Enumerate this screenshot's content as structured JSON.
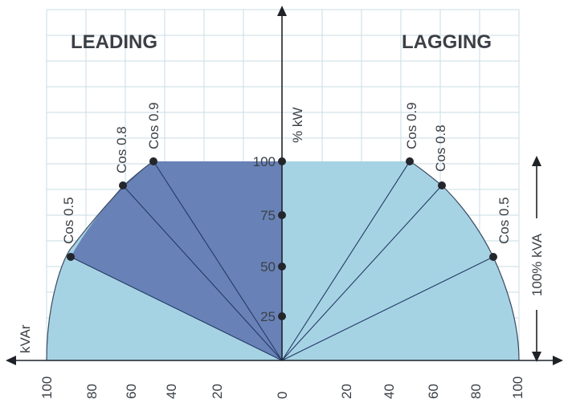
{
  "regions": {
    "leading": "LEADING",
    "lagging": "LAGGING"
  },
  "axes": {
    "y_label": "% kW",
    "x_label": "kVAr",
    "kva_label": "100% kVA",
    "x_ticks": [
      "100",
      "80",
      "60",
      "40",
      "20",
      "0",
      "20",
      "40",
      "60",
      "80",
      "100"
    ],
    "y_ticks": [
      "100",
      "75",
      "50",
      "25"
    ]
  },
  "cos_labels": [
    {
      "side": "leading",
      "text": "Cos 0.5"
    },
    {
      "side": "leading",
      "text": "Cos 0.8"
    },
    {
      "side": "leading",
      "text": "Cos 0.9"
    },
    {
      "side": "lagging",
      "text": "Cos 0.9"
    },
    {
      "side": "lagging",
      "text": "Cos 0.8"
    },
    {
      "side": "lagging",
      "text": "Cos 0.5"
    }
  ],
  "power_factor_points": [
    {
      "side": "leading",
      "pf": 0.5,
      "kvar": 87,
      "kw": 50
    },
    {
      "side": "leading",
      "pf": 0.8,
      "kvar": 60,
      "kw": 80
    },
    {
      "side": "leading",
      "pf": 0.9,
      "kvar": 44,
      "kw": 90
    },
    {
      "side": "lagging",
      "pf": 0.9,
      "kvar": 44,
      "kw": 90
    },
    {
      "side": "lagging",
      "pf": 0.8,
      "kvar": 60,
      "kw": 80
    },
    {
      "side": "lagging",
      "pf": 0.5,
      "kvar": 87,
      "kw": 50
    }
  ],
  "colors": {
    "light_region": "#a6d3e4",
    "dark_region": "#6882b7",
    "grid": "#c9dde5",
    "dot": "#23262b"
  }
}
